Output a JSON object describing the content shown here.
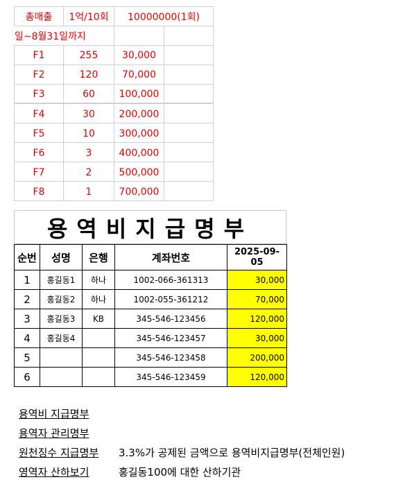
{
  "summary": {
    "label": "총매출",
    "count": "1억/10회",
    "amount": "10000000(1회)",
    "period": "일~8월31일까지"
  },
  "tiers": [
    {
      "grade": "F1",
      "count": "255",
      "amount": "30,000"
    },
    {
      "grade": "F2",
      "count": "120",
      "amount": "70,000"
    },
    {
      "grade": "F3",
      "count": "60",
      "amount": "100,000"
    },
    {
      "grade": "F4",
      "count": "30",
      "amount": "200,000"
    },
    {
      "grade": "F5",
      "count": "10",
      "amount": "300,000"
    },
    {
      "grade": "F6",
      "count": "3",
      "amount": "400,000"
    },
    {
      "grade": "F7",
      "count": "2",
      "amount": "500,000"
    },
    {
      "grade": "F8",
      "count": "1",
      "amount": "700,000"
    }
  ],
  "ledger": {
    "title": "용역비지급명부",
    "headers": {
      "no": "순번",
      "name": "성명",
      "bank": "은행",
      "account": "계좌번호",
      "date": "2025-09-05"
    },
    "rows": [
      {
        "no": "1",
        "name": "홍길동1",
        "bank": "하나",
        "account": "1002-066-361313",
        "amount": "30,000"
      },
      {
        "no": "2",
        "name": "홍길동2",
        "bank": "하나",
        "account": "1002-055-361212",
        "amount": "70,000"
      },
      {
        "no": "3",
        "name": "홍길동3",
        "bank": "KB",
        "account": "345-546-123456",
        "amount": "120,000"
      },
      {
        "no": "4",
        "name": "홍길동4",
        "bank": "",
        "account": "345-546-123457",
        "amount": "30,000"
      },
      {
        "no": "5",
        "name": "",
        "bank": "",
        "account": "345-546-123458",
        "amount": "200,000"
      },
      {
        "no": "6",
        "name": "",
        "bank": "",
        "account": "345-546-123459",
        "amount": "120,000"
      }
    ]
  },
  "links": [
    {
      "label": "용역비 지급명부",
      "desc": ""
    },
    {
      "label": "용역자 관리명부",
      "desc": ""
    },
    {
      "label": "원천징수 지급명부",
      "desc": "3.3%가 공제된 금액으로 용역비지급명부(전체인원)"
    },
    {
      "label": "영역자 산하보기",
      "desc": "홍길동100에 대한 산하기관"
    }
  ],
  "colors": {
    "red_text": "#e00000",
    "highlight": "#ffff00",
    "grid": "#d0d0d0"
  }
}
